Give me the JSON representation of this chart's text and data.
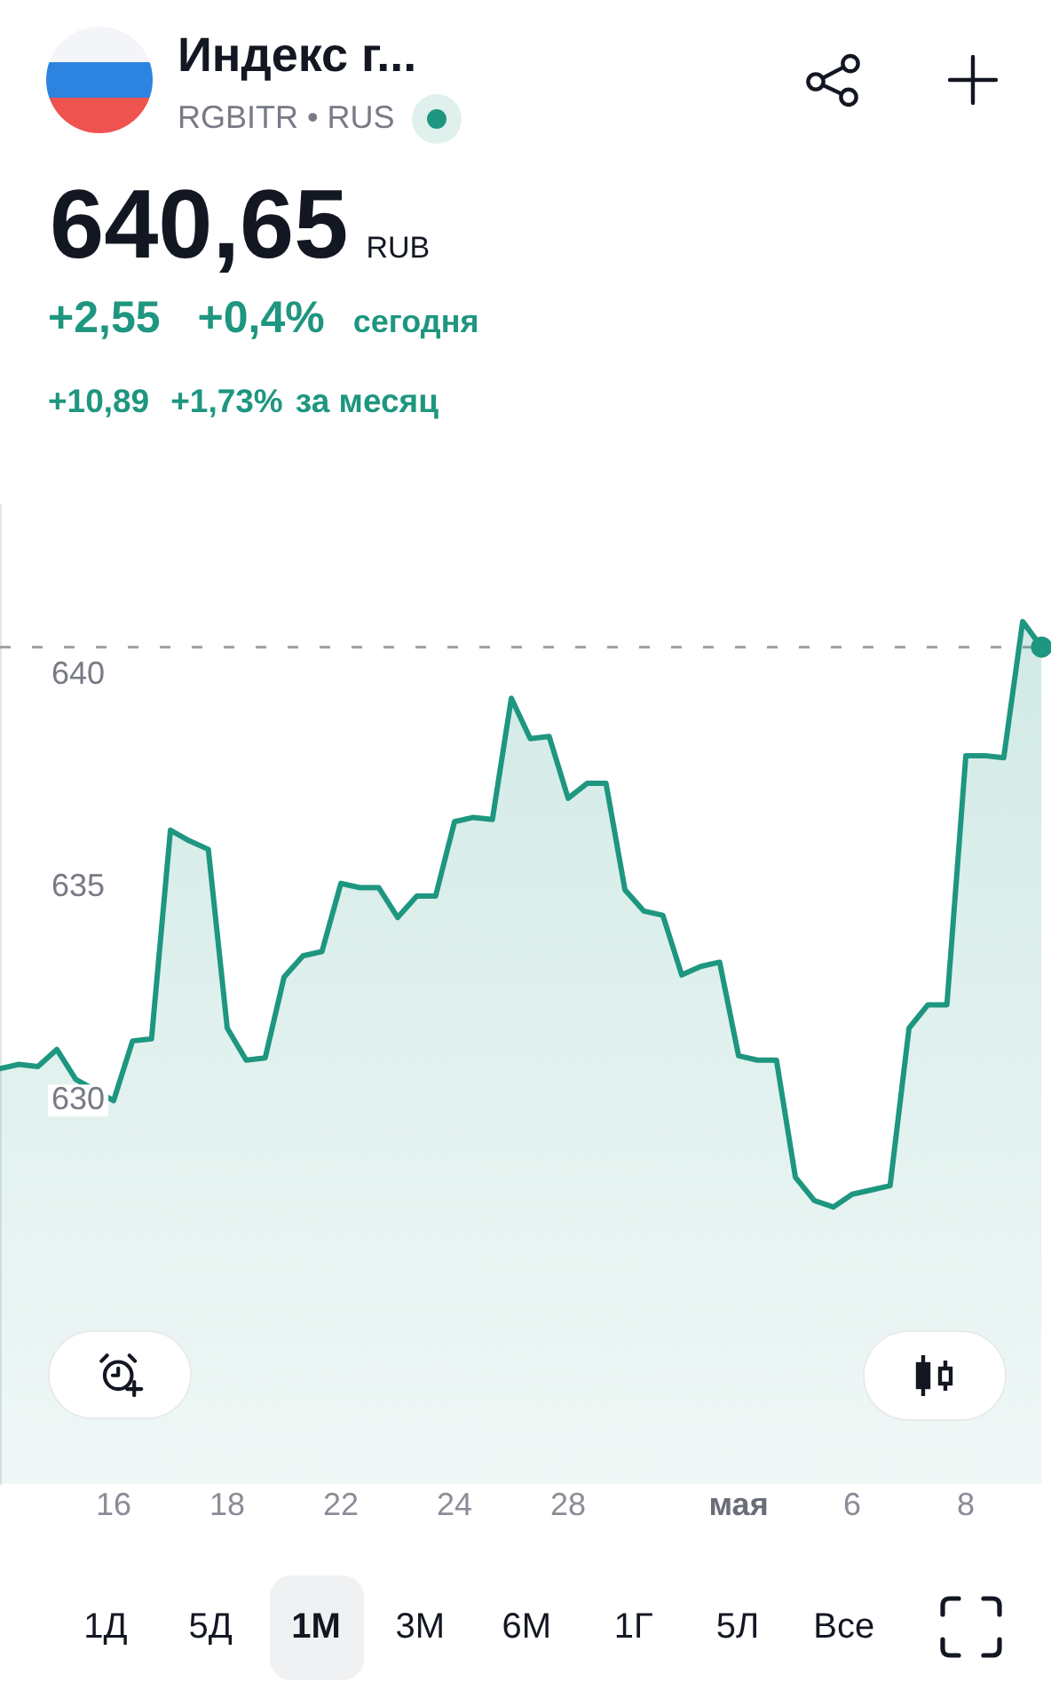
{
  "chart_data": {
    "type": "area",
    "title": "Индекс г...",
    "subtitle": "RGBITR • RUS",
    "annotations": [
      "640,65",
      "RUB",
      "+2,55",
      "+0,4%",
      "сегодня",
      "+10,89",
      "+1,73%",
      "за месяц",
      "1Д",
      "5Д",
      "1М",
      "3М",
      "6М",
      "1Г",
      "5Л",
      "Все"
    ],
    "categories": [
      null,
      null,
      null,
      null,
      null,
      null,
      "16",
      null,
      null,
      null,
      null,
      null,
      "18",
      null,
      null,
      null,
      null,
      null,
      "22",
      null,
      null,
      null,
      null,
      null,
      "24",
      null,
      null,
      null,
      null,
      null,
      "28",
      null,
      null,
      null,
      null,
      null,
      null,
      null,
      null,
      "мая",
      null,
      null,
      null,
      null,
      null,
      "6",
      null,
      null,
      null,
      null,
      null,
      "8",
      null,
      null,
      null,
      null
    ],
    "series": [
      {
        "color": "#1e9680",
        "values": [
          630.75,
          630.85,
          630.8,
          631.2,
          630.5,
          null,
          630.0,
          631.4,
          631.45,
          636.35,
          636.1,
          635.9,
          631.7,
          630.95,
          631.0,
          632.9,
          633.4,
          633.5,
          635.1,
          635.0,
          635.0,
          634.3,
          634.8,
          634.8,
          636.55,
          636.65,
          636.6,
          639.45,
          638.5,
          638.55,
          637.1,
          637.45,
          637.45,
          634.95,
          634.45,
          634.35,
          632.95,
          633.15,
          633.25,
          631.05,
          630.95,
          630.95,
          628.2,
          627.65,
          627.5,
          627.8,
          627.9,
          628.0,
          631.7,
          632.25,
          632.25,
          638.1,
          638.1,
          638.05,
          641.25,
          640.65
        ]
      },
      {
        "type": "scatter",
        "color": "#1e9680",
        "marker": "circle",
        "values": [
          null,
          null,
          null,
          null,
          null,
          null,
          null,
          null,
          null,
          null,
          null,
          null,
          null,
          null,
          null,
          null,
          null,
          null,
          null,
          null,
          null,
          null,
          null,
          null,
          null,
          null,
          null,
          null,
          null,
          null,
          null,
          null,
          null,
          null,
          null,
          null,
          null,
          null,
          null,
          null,
          null,
          null,
          null,
          null,
          null,
          null,
          null,
          null,
          null,
          null,
          null,
          null,
          null,
          null,
          null,
          640.65
        ]
      }
    ],
    "ylim": [
      621,
      644
    ],
    "yticks": [
      630,
      635,
      640
    ],
    "ref_lines": [
      {
        "axis": "y",
        "value": 640.65,
        "color": "#9e9e9e",
        "line_style": "dashed"
      }
    ]
  }
}
